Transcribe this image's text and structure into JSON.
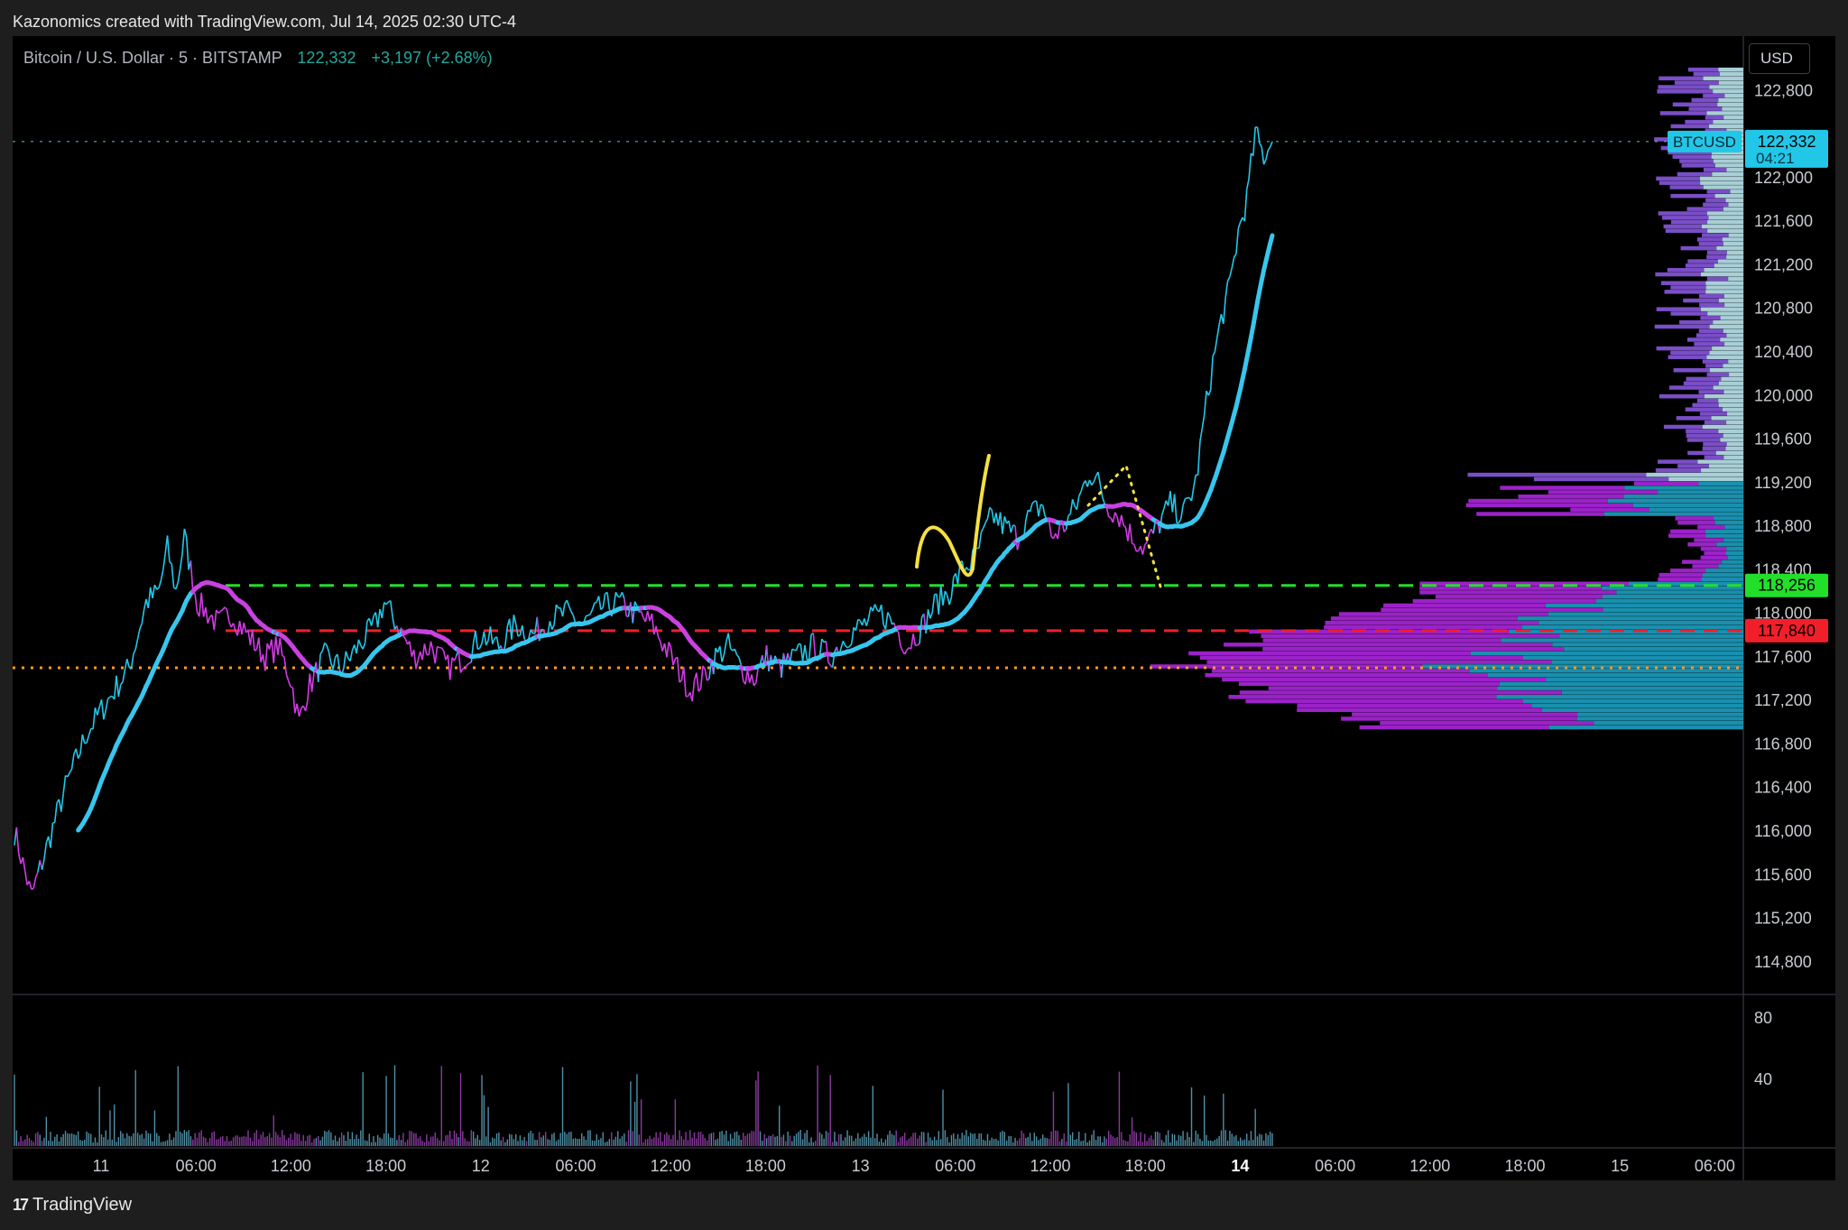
{
  "credit": "Kazonomics created with TradingView.com, Jul 14, 2025 02:30 UTC-4",
  "legend": {
    "symbol": "Bitcoin / U.S. Dollar · 5 · BITSTAMP",
    "price": "122,332",
    "change": "+3,197 (+2.68%)"
  },
  "currency": "USD",
  "footer": {
    "brand": "TradingView",
    "mark": "17"
  },
  "price_axis": {
    "ticks": [
      "122,800",
      "122,000",
      "121,600",
      "121,200",
      "120,800",
      "120,400",
      "120,000",
      "119,600",
      "119,200",
      "118,800",
      "118,400",
      "118,000",
      "117,600",
      "117,200",
      "116,800",
      "116,400",
      "116,000",
      "115,600",
      "115,200",
      "114,800"
    ],
    "range": [
      114500,
      123300
    ]
  },
  "time_axis": {
    "ticks": [
      {
        "label": "11",
        "bold": false
      },
      {
        "label": "06:00",
        "bold": false
      },
      {
        "label": "12:00",
        "bold": false
      },
      {
        "label": "18:00",
        "bold": false
      },
      {
        "label": "12",
        "bold": false
      },
      {
        "label": "06:00",
        "bold": false
      },
      {
        "label": "12:00",
        "bold": false
      },
      {
        "label": "18:00",
        "bold": false
      },
      {
        "label": "13",
        "bold": false
      },
      {
        "label": "06:00",
        "bold": false
      },
      {
        "label": "12:00",
        "bold": false
      },
      {
        "label": "18:00",
        "bold": false
      },
      {
        "label": "14",
        "bold": true
      },
      {
        "label": "06:00",
        "bold": false
      },
      {
        "label": "12:00",
        "bold": false
      },
      {
        "label": "18:00",
        "bold": false
      },
      {
        "label": "15",
        "bold": false
      },
      {
        "label": "06:00",
        "bold": false
      }
    ]
  },
  "volume_axis": {
    "ticks": [
      "80",
      "40"
    ]
  },
  "badges": {
    "symbol": {
      "text": "BTCUSD",
      "color": "#22c7e8"
    },
    "last": {
      "text": "122,332",
      "sub": "04:21",
      "color": "#22c7e8"
    },
    "green": {
      "text": "118,256",
      "color": "#22e02a"
    },
    "red": {
      "text": "117,840",
      "color": "#f01f2a"
    }
  },
  "levels": [
    {
      "name": "resistance",
      "price": 118256,
      "color": "#22e02a",
      "style": "dashed"
    },
    {
      "name": "pivot",
      "price": 117840,
      "color": "#f01f2a",
      "style": "dashed"
    },
    {
      "name": "support",
      "price": 117500,
      "color": "#ff9a1f",
      "style": "dotted"
    },
    {
      "name": "last-price",
      "price": 122332,
      "color": "#5aa7c8",
      "style": "dotted"
    }
  ],
  "colors": {
    "bull": "#22c7e8",
    "bear": "#d23be6",
    "ma": "#38c6ee",
    "ma_alt": "#c842e0",
    "annotation": "#f5e042",
    "vp_up": "#1a8fae",
    "vp_down": "#9b22c8",
    "vp_up_hi": "#a9cfd6",
    "vp_down_hi": "#7a4ec7"
  },
  "chart_data": {
    "type": "line",
    "xlabel": "",
    "ylabel": "",
    "ylim": [
      114500,
      123300
    ],
    "series": [
      {
        "values": [
          [
            0,
            116000
          ],
          [
            8,
            115400
          ],
          [
            16,
            115900
          ],
          [
            24,
            116400
          ],
          [
            34,
            116900
          ],
          [
            44,
            117200
          ],
          [
            54,
            117500
          ],
          [
            62,
            118100
          ],
          [
            68,
            118200
          ],
          [
            72,
            118600
          ],
          [
            76,
            118200
          ],
          [
            80,
            118700
          ],
          [
            86,
            118100
          ],
          [
            96,
            117900
          ],
          [
            102,
            118000
          ],
          [
            110,
            117800
          ],
          [
            118,
            117600
          ],
          [
            124,
            117700
          ],
          [
            130,
            117400
          ],
          [
            134,
            117000
          ],
          [
            138,
            117300
          ],
          [
            146,
            117600
          ],
          [
            154,
            117500
          ],
          [
            162,
            117700
          ],
          [
            170,
            117900
          ],
          [
            174,
            118100
          ],
          [
            180,
            117900
          ],
          [
            188,
            117600
          ],
          [
            196,
            117700
          ],
          [
            204,
            117500
          ],
          [
            212,
            117600
          ],
          [
            220,
            117800
          ],
          [
            228,
            117700
          ],
          [
            236,
            117900
          ],
          [
            244,
            117800
          ],
          [
            252,
            117950
          ],
          [
            260,
            118000
          ],
          [
            268,
            117900
          ],
          [
            276,
            118050
          ],
          [
            284,
            118100
          ],
          [
            292,
            118000
          ],
          [
            300,
            117900
          ],
          [
            306,
            117700
          ],
          [
            312,
            117500
          ],
          [
            318,
            117300
          ],
          [
            324,
            117400
          ],
          [
            330,
            117600
          ],
          [
            336,
            117700
          ],
          [
            342,
            117500
          ],
          [
            348,
            117400
          ],
          [
            354,
            117600
          ],
          [
            360,
            117500
          ],
          [
            368,
            117600
          ],
          [
            376,
            117700
          ],
          [
            384,
            117600
          ],
          [
            392,
            117800
          ],
          [
            400,
            117900
          ],
          [
            408,
            118000
          ],
          [
            414,
            117900
          ],
          [
            420,
            117700
          ],
          [
            428,
            117900
          ],
          [
            434,
            118100
          ],
          [
            440,
            118200
          ],
          [
            446,
            118400
          ],
          [
            452,
            118500
          ],
          [
            456,
            118700
          ],
          [
            460,
            118900
          ],
          [
            466,
            118800
          ],
          [
            472,
            118700
          ],
          [
            478,
            118900
          ],
          [
            484,
            119000
          ],
          [
            488,
            118700
          ],
          [
            494,
            118800
          ],
          [
            500,
            119000
          ],
          [
            506,
            119300
          ],
          [
            510,
            119200
          ],
          [
            514,
            119000
          ],
          [
            520,
            118900
          ],
          [
            526,
            118700
          ],
          [
            532,
            118600
          ],
          [
            538,
            118800
          ],
          [
            544,
            119000
          ],
          [
            550,
            118900
          ],
          [
            556,
            119200
          ],
          [
            560,
            119800
          ],
          [
            564,
            120300
          ],
          [
            568,
            120700
          ],
          [
            572,
            121000
          ],
          [
            576,
            121500
          ],
          [
            580,
            121800
          ],
          [
            584,
            122400
          ],
          [
            588,
            122200
          ],
          [
            592,
            122332
          ]
        ]
      }
    ]
  }
}
